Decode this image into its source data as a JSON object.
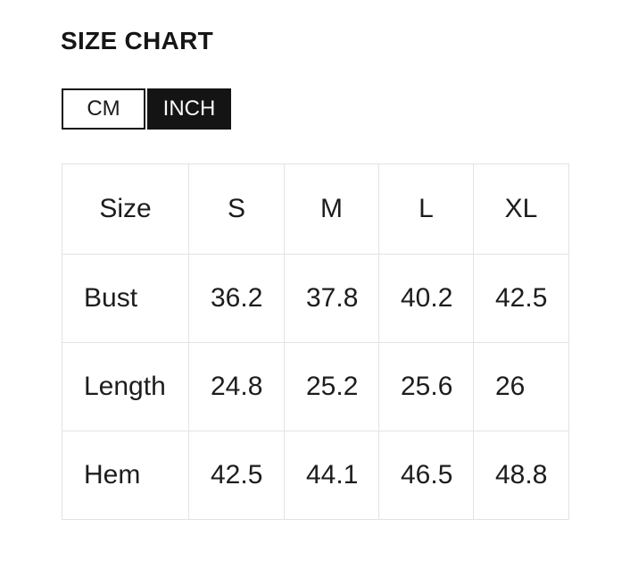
{
  "page": {
    "title": "SIZE CHART"
  },
  "unit_toggle": {
    "options": [
      {
        "label": "CM",
        "selected": false
      },
      {
        "label": "INCH",
        "selected": true
      }
    ]
  },
  "size_chart": {
    "unit": "INCH",
    "columns": [
      "Size",
      "S",
      "M",
      "L",
      "XL"
    ],
    "rows": [
      {
        "label": "Bust",
        "values": [
          "36.2",
          "37.8",
          "40.2",
          "42.5"
        ]
      },
      {
        "label": "Length",
        "values": [
          "24.8",
          "25.2",
          "25.6",
          "26"
        ]
      },
      {
        "label": "Hem",
        "values": [
          "42.5",
          "44.1",
          "46.5",
          "48.8"
        ]
      }
    ]
  },
  "colors": {
    "text": "#1d1d1d",
    "toggle_selected_bg": "#141414",
    "toggle_selected_text": "#fafafa",
    "table_border": "#e3e3e3",
    "background": "#ffffff"
  }
}
